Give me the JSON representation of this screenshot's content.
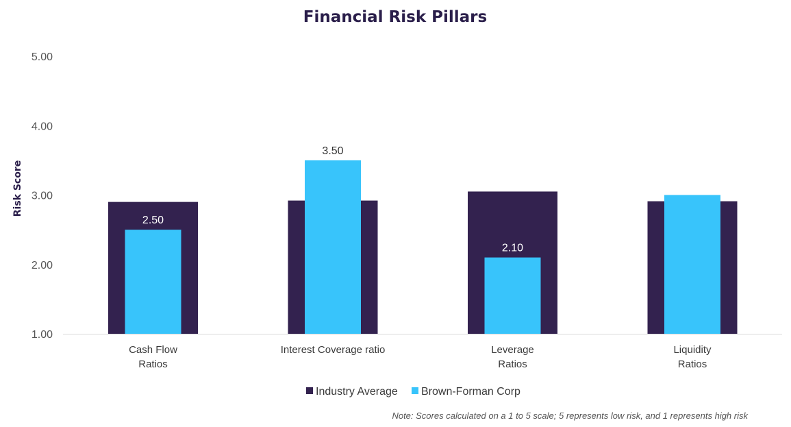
{
  "chart_data": {
    "type": "bar",
    "title": "Financial Risk Pillars",
    "ylabel": "Risk Score",
    "xlabel": "",
    "ylim": [
      1,
      5
    ],
    "yticks": [
      "1.00",
      "2.00",
      "3.00",
      "4.00",
      "5.00"
    ],
    "ytick_values": [
      1,
      2,
      3,
      4,
      5
    ],
    "categories": [
      [
        "Cash Flow",
        "Ratios"
      ],
      [
        "Interest Coverage ratio"
      ],
      [
        "Leverage",
        "Ratios"
      ],
      [
        "Liquidity",
        "Ratios"
      ]
    ],
    "series": [
      {
        "name": "Industry Average",
        "color": "#33224f",
        "values": [
          2.9,
          2.92,
          3.05,
          2.91
        ],
        "labels": [
          "",
          "",
          "",
          ""
        ]
      },
      {
        "name": "Brown-Forman Corp",
        "color": "#38c4fb",
        "values": [
          2.5,
          3.5,
          2.1,
          3.0
        ],
        "labels": [
          "2.50",
          "3.50",
          "2.10",
          ""
        ]
      }
    ],
    "grid": false,
    "legend_position": "bottom-center",
    "note": "Note: Scores calculated on a 1 to 5 scale; 5 represents low risk, and 1 represents high risk"
  }
}
